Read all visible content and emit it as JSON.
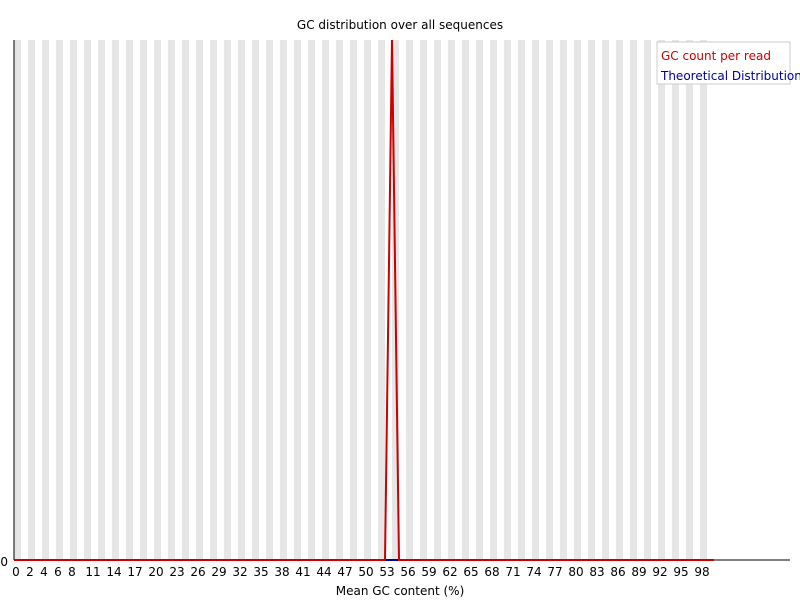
{
  "chart_data": {
    "type": "line",
    "title": "GC distribution over all sequences",
    "xlabel": "Mean GC content (%)",
    "ylabel": "",
    "y_tick_labels": [
      "0"
    ],
    "x_tick_labels": [
      "0",
      "2",
      "4",
      "6",
      "8",
      "11",
      "14",
      "17",
      "20",
      "23",
      "26",
      "29",
      "32",
      "35",
      "38",
      "41",
      "44",
      "47",
      "50",
      "53",
      "56",
      "59",
      "62",
      "65",
      "68",
      "71",
      "74",
      "77",
      "80",
      "83",
      "86",
      "89",
      "92",
      "95",
      "98"
    ],
    "xlim": [
      0,
      100
    ],
    "ylim": [
      0,
      1
    ],
    "grid": "alternating vertical bands",
    "legend_position": "top-right",
    "series": [
      {
        "name": "GC count per read",
        "color": "#cc0000",
        "x": [
          0,
          53,
          54,
          55,
          100
        ],
        "y": [
          0,
          0,
          1,
          0,
          0
        ]
      },
      {
        "name": "Theoretical Distribution",
        "color": "#000099",
        "x": [
          0,
          100
        ],
        "y": [
          0,
          0
        ]
      }
    ]
  }
}
